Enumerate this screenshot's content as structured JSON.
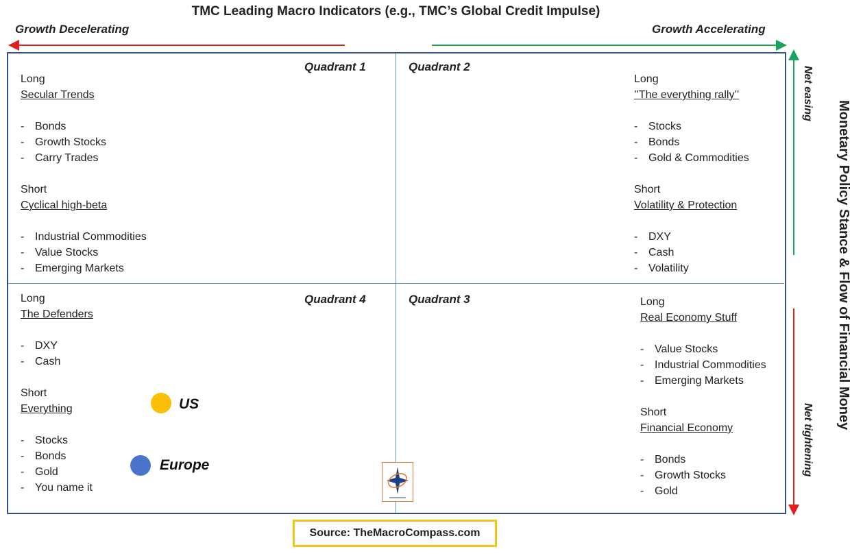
{
  "title": "TMC Leading Macro Indicators (e.g., TMC’s Global Credit Impulse)",
  "axis": {
    "left_label": "Growth Decelerating",
    "right_label": "Growth Accelerating",
    "top_vertical_label": "Net easing",
    "bottom_vertical_label": "Net tightening",
    "side_title": "Monetary Policy Stance & Flow of Financial Money",
    "colors": {
      "accelerating": "#1aa35a",
      "decelerating": "#e02020"
    }
  },
  "quadrants": {
    "q1": {
      "name": "Quadrant 1",
      "long_label": "Long",
      "long_theme": "Secular Trends",
      "long_items": [
        "Bonds",
        "Growth Stocks",
        "Carry Trades"
      ],
      "short_label": "Short",
      "short_theme": "Cyclical high-beta",
      "short_items": [
        "Industrial Commodities",
        "Value Stocks",
        "Emerging Markets"
      ]
    },
    "q2": {
      "name": "Quadrant 2",
      "long_label": "Long",
      "long_theme": "’’The everything rally’’",
      "long_items": [
        "Stocks",
        "Bonds",
        "Gold & Commodities"
      ],
      "short_label": "Short",
      "short_theme": "Volatility & Protection",
      "short_items": [
        "DXY",
        "Cash",
        "Volatility"
      ]
    },
    "q3": {
      "name": "Quadrant 3",
      "long_label": "Long",
      "long_theme": "Real Economy Stuff",
      "long_items": [
        "Value Stocks",
        "Industrial Commodities",
        "Emerging Markets"
      ],
      "short_label": "Short",
      "short_theme": "Financial Economy",
      "short_items": [
        "Bonds",
        "Growth Stocks",
        "Gold"
      ]
    },
    "q4": {
      "name": "Quadrant 4",
      "long_label": "Long",
      "long_theme": "The Defenders",
      "long_items": [
        "DXY",
        "Cash"
      ],
      "short_label": "Short",
      "short_theme": "Everything",
      "short_items": [
        "Stocks",
        "Bonds",
        "Gold",
        "You name it"
      ]
    }
  },
  "markers": [
    {
      "label": "US",
      "color": "#fbbf0a"
    },
    {
      "label": "Europe",
      "color": "#4a74c9"
    }
  ],
  "source": "Source: TheMacroCompass.com"
}
